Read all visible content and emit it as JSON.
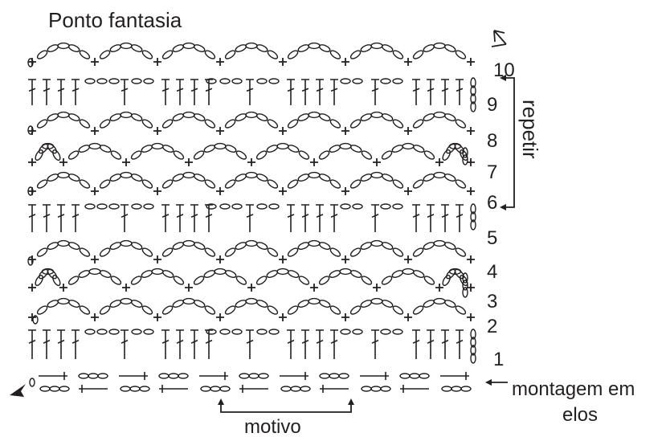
{
  "title": "Ponto fantasia",
  "row_numbers": [
    "1",
    "2",
    "3",
    "4",
    "5",
    "6",
    "7",
    "8",
    "9",
    "10"
  ],
  "repeat_label": "repetir",
  "foundation_label_line1": "montagem em",
  "foundation_label_line2": "elos",
  "motif_label": "motivo",
  "colors": {
    "ink": "#231f20",
    "background": "#ffffff"
  },
  "symbols": [
    "chain-stitch",
    "single-crochet",
    "double-crochet",
    "slip-stitch",
    "direction-arrow"
  ]
}
